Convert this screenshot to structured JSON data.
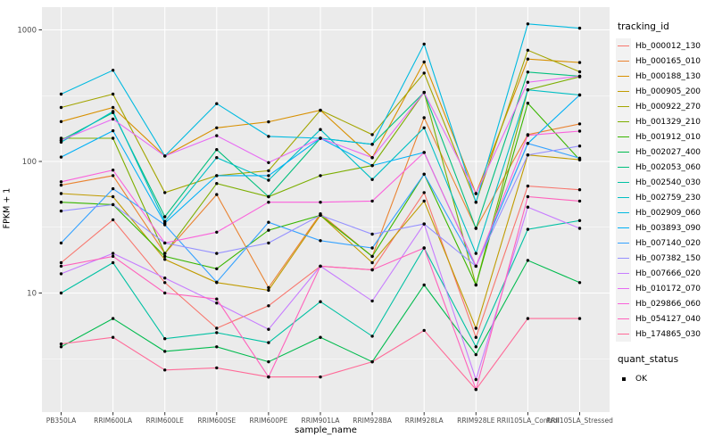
{
  "figure": {
    "background": "#FFFFFF",
    "panel_background": "#EBEBEB",
    "grid_color": "#FFFFFF",
    "tick_label_color": "#4D4D4D",
    "point_color": "#000000"
  },
  "chart_data": {
    "type": "line",
    "xlabel": "sample_name",
    "ylabel": "FPKM + 1",
    "y_scale": "log10",
    "ylim": [
      1.2,
      1500
    ],
    "y_major_ticks": [
      10,
      100,
      1000
    ],
    "y_minor_ticks": [
      3.162,
      31.62,
      316.2
    ],
    "grid": true,
    "legend_position": "right",
    "legend_title": "tracking_id",
    "categories": [
      "PB350LA",
      "RRIM600LA",
      "RRIM600LE",
      "RRIM600SE",
      "RRIM600PE",
      "RRIM901LA",
      "RRIM928BA",
      "RRIM928LA",
      "RRIM928LE",
      "RRII105LA_Control",
      "RRII105LA_Stressed"
    ],
    "series": [
      {
        "name": "Hb_000012_130",
        "color": "#F8766D",
        "values": [
          17,
          36,
          12,
          5.4,
          8,
          16,
          15,
          58,
          4.6,
          65,
          61
        ]
      },
      {
        "name": "Hb_000165_010",
        "color": "#EA8331",
        "values": [
          66,
          78,
          20,
          56,
          11,
          40,
          19,
          215,
          31,
          160,
          193
        ]
      },
      {
        "name": "Hb_000188_130",
        "color": "#D89000",
        "values": [
          201,
          257,
          110,
          180,
          200,
          245,
          107,
          570,
          57,
          600,
          565
        ]
      },
      {
        "name": "Hb_000905_200",
        "color": "#C09B00",
        "values": [
          57,
          54,
          18,
          12,
          10.5,
          39,
          17,
          50,
          5.4,
          112,
          103
        ]
      },
      {
        "name": "Hb_000922_270",
        "color": "#A3A500",
        "values": [
          257,
          325,
          58,
          78,
          85,
          245,
          160,
          470,
          49,
          700,
          480
        ]
      },
      {
        "name": "Hb_001329_210",
        "color": "#7CAE00",
        "values": [
          150,
          150,
          20,
          68,
          54,
          78,
          93,
          335,
          11.5,
          350,
          440
        ]
      },
      {
        "name": "Hb_001912_010",
        "color": "#39B600",
        "values": [
          49,
          47,
          19,
          15.3,
          30,
          39,
          19,
          80,
          11.5,
          277,
          103
        ]
      },
      {
        "name": "Hb_002027_400",
        "color": "#00BB4E",
        "values": [
          3.9,
          6.4,
          3.6,
          3.9,
          3,
          4.6,
          3,
          11.5,
          3.4,
          17.7,
          12
        ]
      },
      {
        "name": "Hb_002053_060",
        "color": "#00BF7D",
        "values": [
          145,
          235,
          38,
          123,
          54,
          150,
          135,
          335,
          31,
          478,
          445
        ]
      },
      {
        "name": "Hb_002540_030",
        "color": "#00C1A3",
        "values": [
          10,
          17,
          4.5,
          5,
          4.2,
          8.6,
          4.7,
          22,
          3.9,
          30.5,
          35.5
        ]
      },
      {
        "name": "Hb_002759_230",
        "color": "#00BFC4",
        "values": [
          140,
          240,
          35,
          107,
          72,
          175,
          73,
          180,
          20,
          350,
          320
        ]
      },
      {
        "name": "Hb_002909_060",
        "color": "#00BAE0",
        "values": [
          325,
          493,
          110,
          275,
          155,
          150,
          135,
          780,
          49,
          1110,
          1030
        ]
      },
      {
        "name": "Hb_003893_090",
        "color": "#00B0F6",
        "values": [
          108,
          171,
          34,
          78,
          78,
          150,
          93,
          117,
          16,
          137,
          320
        ]
      },
      {
        "name": "Hb_007140_020",
        "color": "#35A2FF",
        "values": [
          24,
          62,
          33,
          12.1,
          34.5,
          25,
          22,
          80,
          16,
          137,
          106
        ]
      },
      {
        "name": "Hb_007382_150",
        "color": "#9590FF",
        "values": [
          42,
          47,
          24,
          20,
          24,
          39,
          28,
          33.5,
          16,
          112,
          131
        ]
      },
      {
        "name": "Hb_007666_020",
        "color": "#C77CFF",
        "values": [
          14,
          20,
          13,
          8.4,
          5.3,
          16,
          8.7,
          33.5,
          2.2,
          45,
          31
        ]
      },
      {
        "name": "Hb_010172_070",
        "color": "#E76BF3",
        "values": [
          145,
          210,
          110,
          157,
          98,
          150,
          107,
          335,
          57,
          400,
          445
        ]
      },
      {
        "name": "Hb_029866_060",
        "color": "#FA62DB",
        "values": [
          70,
          86,
          24,
          29,
          49,
          49,
          50,
          117,
          16,
          158,
          170
        ]
      },
      {
        "name": "Hb_054127_040",
        "color": "#FF62BC",
        "values": [
          16,
          19,
          10,
          9,
          2.3,
          16,
          15,
          22,
          1.85,
          54,
          50
        ]
      },
      {
        "name": "Hb_174865_030",
        "color": "#FF6A98",
        "values": [
          4.1,
          4.6,
          2.6,
          2.7,
          2.3,
          2.3,
          3,
          5.2,
          1.85,
          6.4,
          6.4
        ]
      }
    ],
    "legend2": {
      "title": "quant_status",
      "items": [
        {
          "label": "OK",
          "marker": "square",
          "color": "#000000"
        }
      ]
    }
  }
}
